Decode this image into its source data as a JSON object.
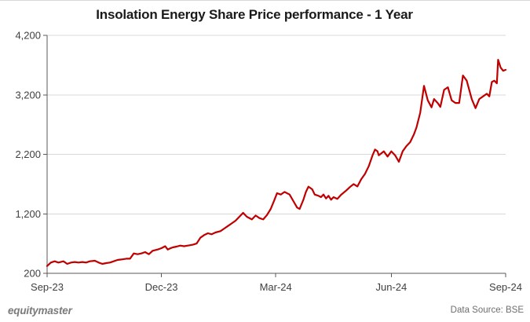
{
  "header": {
    "title": "Insolation Energy Share Price performance - 1 Year"
  },
  "chart_data": {
    "type": "line",
    "title": "Insolation Energy Share Price performance - 1 Year",
    "xlabel": "",
    "ylabel": "",
    "ylim": [
      200,
      4200
    ],
    "xlim_days": [
      0,
      365
    ],
    "grid": true,
    "legend": "none",
    "line_color": "#c00000",
    "grid_color": "#d9d9d9",
    "axis_color": "#595959",
    "label_color": "#404040",
    "x_ticks": [
      {
        "label": "Sep-23",
        "day": 0
      },
      {
        "label": "Dec-23",
        "day": 91
      },
      {
        "label": "Mar-24",
        "day": 182
      },
      {
        "label": "Jun-24",
        "day": 274
      },
      {
        "label": "Sep-24",
        "day": 365
      }
    ],
    "y_ticks": [
      {
        "label": "200",
        "value": 200
      },
      {
        "label": "1,200",
        "value": 1200
      },
      {
        "label": "2,200",
        "value": 2200
      },
      {
        "label": "3,200",
        "value": 3200
      },
      {
        "label": "4,200",
        "value": 4200
      }
    ],
    "series": [
      {
        "name": "Insolation Energy share price (BSE)",
        "color": "#c00000",
        "points": [
          [
            0,
            323
          ],
          [
            3,
            381
          ],
          [
            6,
            402
          ],
          [
            9,
            381
          ],
          [
            13,
            402
          ],
          [
            16,
            358
          ],
          [
            19,
            381
          ],
          [
            22,
            390
          ],
          [
            25,
            381
          ],
          [
            28,
            390
          ],
          [
            31,
            381
          ],
          [
            34,
            402
          ],
          [
            38,
            411
          ],
          [
            41,
            381
          ],
          [
            44,
            358
          ],
          [
            47,
            372
          ],
          [
            50,
            381
          ],
          [
            53,
            402
          ],
          [
            56,
            424
          ],
          [
            59,
            433
          ],
          [
            63,
            446
          ],
          [
            66,
            446
          ],
          [
            69,
            534
          ],
          [
            72,
            521
          ],
          [
            75,
            534
          ],
          [
            78,
            556
          ],
          [
            81,
            521
          ],
          [
            84,
            579
          ],
          [
            88,
            600
          ],
          [
            91,
            622
          ],
          [
            94,
            655
          ],
          [
            96,
            600
          ],
          [
            98,
            620
          ],
          [
            100,
            635
          ],
          [
            103,
            649
          ],
          [
            106,
            666
          ],
          [
            109,
            655
          ],
          [
            113,
            670
          ],
          [
            116,
            680
          ],
          [
            119,
            700
          ],
          [
            122,
            798
          ],
          [
            125,
            843
          ],
          [
            128,
            873
          ],
          [
            131,
            856
          ],
          [
            134,
            886
          ],
          [
            138,
            909
          ],
          [
            141,
            952
          ],
          [
            144,
            996
          ],
          [
            147,
            1040
          ],
          [
            150,
            1084
          ],
          [
            153,
            1150
          ],
          [
            156,
            1216
          ],
          [
            159,
            1150
          ],
          [
            163,
            1106
          ],
          [
            166,
            1172
          ],
          [
            169,
            1128
          ],
          [
            172,
            1106
          ],
          [
            175,
            1180
          ],
          [
            178,
            1282
          ],
          [
            181,
            1437
          ],
          [
            183,
            1546
          ],
          [
            186,
            1524
          ],
          [
            189,
            1568
          ],
          [
            193,
            1524
          ],
          [
            196,
            1414
          ],
          [
            199,
            1305
          ],
          [
            201,
            1282
          ],
          [
            204,
            1437
          ],
          [
            206,
            1568
          ],
          [
            208,
            1656
          ],
          [
            211,
            1612
          ],
          [
            213,
            1524
          ],
          [
            216,
            1503
          ],
          [
            218,
            1480
          ],
          [
            220,
            1524
          ],
          [
            222,
            1458
          ],
          [
            224,
            1503
          ],
          [
            226,
            1437
          ],
          [
            228,
            1480
          ],
          [
            231,
            1450
          ],
          [
            234,
            1520
          ],
          [
            238,
            1590
          ],
          [
            241,
            1650
          ],
          [
            244,
            1700
          ],
          [
            247,
            1660
          ],
          [
            250,
            1780
          ],
          [
            253,
            1870
          ],
          [
            256,
            2000
          ],
          [
            259,
            2180
          ],
          [
            261,
            2280
          ],
          [
            263,
            2250
          ],
          [
            264,
            2184
          ],
          [
            268,
            2250
          ],
          [
            271,
            2163
          ],
          [
            274,
            2250
          ],
          [
            277,
            2184
          ],
          [
            280,
            2074
          ],
          [
            283,
            2250
          ],
          [
            286,
            2338
          ],
          [
            289,
            2404
          ],
          [
            292,
            2536
          ],
          [
            294,
            2650
          ],
          [
            297,
            2900
          ],
          [
            300,
            3351
          ],
          [
            303,
            3108
          ],
          [
            306,
            2990
          ],
          [
            308,
            3130
          ],
          [
            311,
            3060
          ],
          [
            313,
            2998
          ],
          [
            316,
            3284
          ],
          [
            319,
            3328
          ],
          [
            322,
            3108
          ],
          [
            325,
            3064
          ],
          [
            328,
            3064
          ],
          [
            331,
            3526
          ],
          [
            334,
            3438
          ],
          [
            338,
            3130
          ],
          [
            341,
            2976
          ],
          [
            344,
            3130
          ],
          [
            347,
            3174
          ],
          [
            350,
            3218
          ],
          [
            352,
            3174
          ],
          [
            354,
            3416
          ],
          [
            356,
            3438
          ],
          [
            358,
            3394
          ],
          [
            359,
            3790
          ],
          [
            361,
            3658
          ],
          [
            363,
            3605
          ],
          [
            365,
            3620
          ]
        ]
      }
    ]
  },
  "footer": {
    "brand": "equitymaster",
    "data_source": "Data Source: BSE"
  }
}
